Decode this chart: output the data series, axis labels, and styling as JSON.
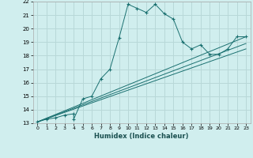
{
  "xlabel": "Humidex (Indice chaleur)",
  "background_color": "#d0eeee",
  "grid_color": "#b8d8d8",
  "line_color": "#1a7070",
  "xlim": [
    -0.5,
    23.5
  ],
  "ylim": [
    13,
    22
  ],
  "xtick_labels": [
    "0",
    "1",
    "2",
    "3",
    "4",
    "5",
    "6",
    "7",
    "8",
    "9",
    "10",
    "11",
    "12",
    "13",
    "14",
    "15",
    "16",
    "17",
    "18",
    "19",
    "20",
    "21",
    "22",
    "23"
  ],
  "xtick_pos": [
    0,
    1,
    2,
    3,
    4,
    5,
    6,
    7,
    8,
    9,
    10,
    11,
    12,
    13,
    14,
    15,
    16,
    17,
    18,
    19,
    20,
    21,
    22,
    23
  ],
  "yticks": [
    13,
    14,
    15,
    16,
    17,
    18,
    19,
    20,
    21,
    22
  ],
  "curve1_x": [
    0,
    1,
    2,
    3,
    4,
    4,
    5,
    6,
    7,
    8,
    9,
    10,
    11,
    12,
    13,
    14,
    15,
    16,
    17,
    18,
    19,
    20,
    21,
    22,
    23
  ],
  "curve1_y": [
    13.1,
    13.3,
    13.4,
    13.6,
    13.7,
    13.3,
    14.8,
    15.0,
    16.3,
    17.0,
    19.3,
    21.8,
    21.5,
    21.2,
    21.8,
    21.1,
    20.7,
    19.0,
    18.5,
    18.8,
    18.1,
    18.1,
    18.5,
    19.4,
    19.4
  ],
  "curve2_x": [
    0,
    23
  ],
  "curve2_y": [
    13.1,
    19.4
  ],
  "curve3_x": [
    0,
    23
  ],
  "curve3_y": [
    13.1,
    18.9
  ],
  "curve4_x": [
    0,
    23
  ],
  "curve4_y": [
    13.1,
    18.5
  ]
}
